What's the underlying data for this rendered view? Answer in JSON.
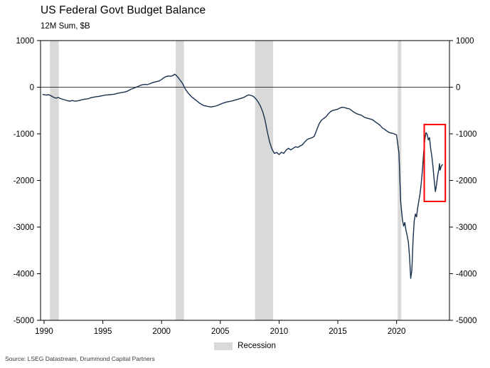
{
  "header": {
    "title": "US Federal Govt Budget Balance",
    "subtitle": "12M Sum, $B"
  },
  "legend": {
    "recession_label": "Recession",
    "recession_color": "#d9d9d9"
  },
  "source": "Source: LSEG Datastream, Drummond Capital Partners",
  "chart_data": {
    "type": "line",
    "title": "US Federal Govt Budget Balance",
    "subtitle": "12M Sum, $B",
    "xlabel": "",
    "ylabel": "",
    "xlim": [
      1989.7,
      2024.5
    ],
    "ylim": [
      -5000,
      1000
    ],
    "x_ticks": [
      1990,
      1995,
      2000,
      2005,
      2010,
      2015,
      2020
    ],
    "y_ticks": [
      1000,
      0,
      -1000,
      -2000,
      -3000,
      -4000,
      -5000
    ],
    "grid": false,
    "legend_position": "bottom",
    "line_color": "#16304d",
    "recession_color": "#d9d9d9",
    "zero_line": 0,
    "recession_bands": [
      [
        1990.5,
        1991.25
      ],
      [
        2001.2,
        2001.9
      ],
      [
        2007.95,
        2009.5
      ],
      [
        2020.1,
        2020.4
      ]
    ],
    "highlight_box": {
      "x0": 2022.35,
      "x1": 2024.15,
      "y0": -2450,
      "y1": -800,
      "color": "#ff0000"
    },
    "series": [
      {
        "name": "US Federal Govt Budget Balance (12M Sum, $B)",
        "points": [
          [
            1989.9,
            -155
          ],
          [
            1990.2,
            -170
          ],
          [
            1990.4,
            -160
          ],
          [
            1990.6,
            -185
          ],
          [
            1990.8,
            -215
          ],
          [
            1991.0,
            -235
          ],
          [
            1991.2,
            -220
          ],
          [
            1991.4,
            -245
          ],
          [
            1991.6,
            -260
          ],
          [
            1991.8,
            -275
          ],
          [
            1992.0,
            -290
          ],
          [
            1992.2,
            -300
          ],
          [
            1992.4,
            -285
          ],
          [
            1992.6,
            -300
          ],
          [
            1992.8,
            -295
          ],
          [
            1993.0,
            -285
          ],
          [
            1993.2,
            -270
          ],
          [
            1993.4,
            -260
          ],
          [
            1993.6,
            -255
          ],
          [
            1993.8,
            -245
          ],
          [
            1994.0,
            -225
          ],
          [
            1994.2,
            -215
          ],
          [
            1994.4,
            -205
          ],
          [
            1994.6,
            -200
          ],
          [
            1994.8,
            -190
          ],
          [
            1995.0,
            -180
          ],
          [
            1995.2,
            -170
          ],
          [
            1995.4,
            -165
          ],
          [
            1995.6,
            -160
          ],
          [
            1995.8,
            -155
          ],
          [
            1996.0,
            -150
          ],
          [
            1996.2,
            -135
          ],
          [
            1996.4,
            -125
          ],
          [
            1996.6,
            -115
          ],
          [
            1996.8,
            -105
          ],
          [
            1997.0,
            -95
          ],
          [
            1997.2,
            -70
          ],
          [
            1997.4,
            -45
          ],
          [
            1997.6,
            -25
          ],
          [
            1997.8,
            -5
          ],
          [
            1998.0,
            15
          ],
          [
            1998.2,
            40
          ],
          [
            1998.4,
            55
          ],
          [
            1998.6,
            60
          ],
          [
            1998.8,
            55
          ],
          [
            1999.0,
            75
          ],
          [
            1999.2,
            95
          ],
          [
            1999.4,
            110
          ],
          [
            1999.6,
            120
          ],
          [
            1999.8,
            135
          ],
          [
            2000.0,
            165
          ],
          [
            2000.2,
            205
          ],
          [
            2000.4,
            230
          ],
          [
            2000.6,
            240
          ],
          [
            2000.8,
            235
          ],
          [
            2001.0,
            255
          ],
          [
            2001.1,
            280
          ],
          [
            2001.2,
            265
          ],
          [
            2001.4,
            210
          ],
          [
            2001.6,
            145
          ],
          [
            2001.8,
            75
          ],
          [
            2002.0,
            -30
          ],
          [
            2002.2,
            -105
          ],
          [
            2002.4,
            -165
          ],
          [
            2002.6,
            -215
          ],
          [
            2002.8,
            -255
          ],
          [
            2003.0,
            -295
          ],
          [
            2003.2,
            -335
          ],
          [
            2003.4,
            -370
          ],
          [
            2003.6,
            -395
          ],
          [
            2003.8,
            -405
          ],
          [
            2004.0,
            -415
          ],
          [
            2004.2,
            -425
          ],
          [
            2004.4,
            -415
          ],
          [
            2004.6,
            -405
          ],
          [
            2004.8,
            -390
          ],
          [
            2005.0,
            -365
          ],
          [
            2005.2,
            -345
          ],
          [
            2005.4,
            -330
          ],
          [
            2005.6,
            -315
          ],
          [
            2005.8,
            -305
          ],
          [
            2006.0,
            -295
          ],
          [
            2006.2,
            -280
          ],
          [
            2006.4,
            -265
          ],
          [
            2006.6,
            -250
          ],
          [
            2006.8,
            -235
          ],
          [
            2007.0,
            -220
          ],
          [
            2007.2,
            -190
          ],
          [
            2007.4,
            -165
          ],
          [
            2007.6,
            -175
          ],
          [
            2007.8,
            -195
          ],
          [
            2008.0,
            -245
          ],
          [
            2008.2,
            -310
          ],
          [
            2008.4,
            -400
          ],
          [
            2008.6,
            -520
          ],
          [
            2008.8,
            -700
          ],
          [
            2009.0,
            -960
          ],
          [
            2009.2,
            -1180
          ],
          [
            2009.4,
            -1330
          ],
          [
            2009.6,
            -1420
          ],
          [
            2009.8,
            -1400
          ],
          [
            2010.0,
            -1445
          ],
          [
            2010.2,
            -1395
          ],
          [
            2010.4,
            -1420
          ],
          [
            2010.6,
            -1350
          ],
          [
            2010.8,
            -1310
          ],
          [
            2011.0,
            -1345
          ],
          [
            2011.2,
            -1310
          ],
          [
            2011.4,
            -1280
          ],
          [
            2011.6,
            -1290
          ],
          [
            2011.8,
            -1260
          ],
          [
            2012.0,
            -1230
          ],
          [
            2012.2,
            -1170
          ],
          [
            2012.4,
            -1120
          ],
          [
            2012.6,
            -1100
          ],
          [
            2012.8,
            -1085
          ],
          [
            2013.0,
            -1050
          ],
          [
            2013.2,
            -920
          ],
          [
            2013.4,
            -790
          ],
          [
            2013.6,
            -710
          ],
          [
            2013.8,
            -670
          ],
          [
            2014.0,
            -630
          ],
          [
            2014.2,
            -570
          ],
          [
            2014.4,
            -520
          ],
          [
            2014.6,
            -495
          ],
          [
            2014.8,
            -485
          ],
          [
            2015.0,
            -470
          ],
          [
            2015.2,
            -445
          ],
          [
            2015.4,
            -430
          ],
          [
            2015.6,
            -440
          ],
          [
            2015.8,
            -455
          ],
          [
            2016.0,
            -465
          ],
          [
            2016.2,
            -505
          ],
          [
            2016.4,
            -540
          ],
          [
            2016.6,
            -570
          ],
          [
            2016.8,
            -585
          ],
          [
            2017.0,
            -600
          ],
          [
            2017.2,
            -635
          ],
          [
            2017.4,
            -660
          ],
          [
            2017.6,
            -670
          ],
          [
            2017.8,
            -685
          ],
          [
            2018.0,
            -705
          ],
          [
            2018.2,
            -745
          ],
          [
            2018.4,
            -780
          ],
          [
            2018.6,
            -820
          ],
          [
            2018.8,
            -875
          ],
          [
            2019.0,
            -905
          ],
          [
            2019.2,
            -945
          ],
          [
            2019.4,
            -975
          ],
          [
            2019.6,
            -985
          ],
          [
            2019.8,
            -1000
          ],
          [
            2020.0,
            -1025
          ],
          [
            2020.2,
            -1420
          ],
          [
            2020.35,
            -2450
          ],
          [
            2020.5,
            -2850
          ],
          [
            2020.6,
            -2980
          ],
          [
            2020.7,
            -2900
          ],
          [
            2020.8,
            -3070
          ],
          [
            2020.9,
            -3180
          ],
          [
            2021.0,
            -3320
          ],
          [
            2021.1,
            -3620
          ],
          [
            2021.2,
            -4100
          ],
          [
            2021.3,
            -3930
          ],
          [
            2021.4,
            -3280
          ],
          [
            2021.5,
            -2870
          ],
          [
            2021.6,
            -2720
          ],
          [
            2021.7,
            -2780
          ],
          [
            2021.8,
            -2580
          ],
          [
            2021.9,
            -2430
          ],
          [
            2022.0,
            -2280
          ],
          [
            2022.1,
            -2060
          ],
          [
            2022.2,
            -1780
          ],
          [
            2022.3,
            -1430
          ],
          [
            2022.4,
            -1120
          ],
          [
            2022.5,
            -975
          ],
          [
            2022.6,
            -1010
          ],
          [
            2022.7,
            -1130
          ],
          [
            2022.8,
            -1080
          ],
          [
            2022.9,
            -1320
          ],
          [
            2023.0,
            -1480
          ],
          [
            2023.1,
            -1720
          ],
          [
            2023.2,
            -1990
          ],
          [
            2023.3,
            -2240
          ],
          [
            2023.4,
            -2090
          ],
          [
            2023.5,
            -1890
          ],
          [
            2023.6,
            -1760
          ],
          [
            2023.65,
            -1640
          ],
          [
            2023.7,
            -1780
          ],
          [
            2023.8,
            -1700
          ],
          [
            2023.9,
            -1660
          ]
        ]
      }
    ]
  }
}
